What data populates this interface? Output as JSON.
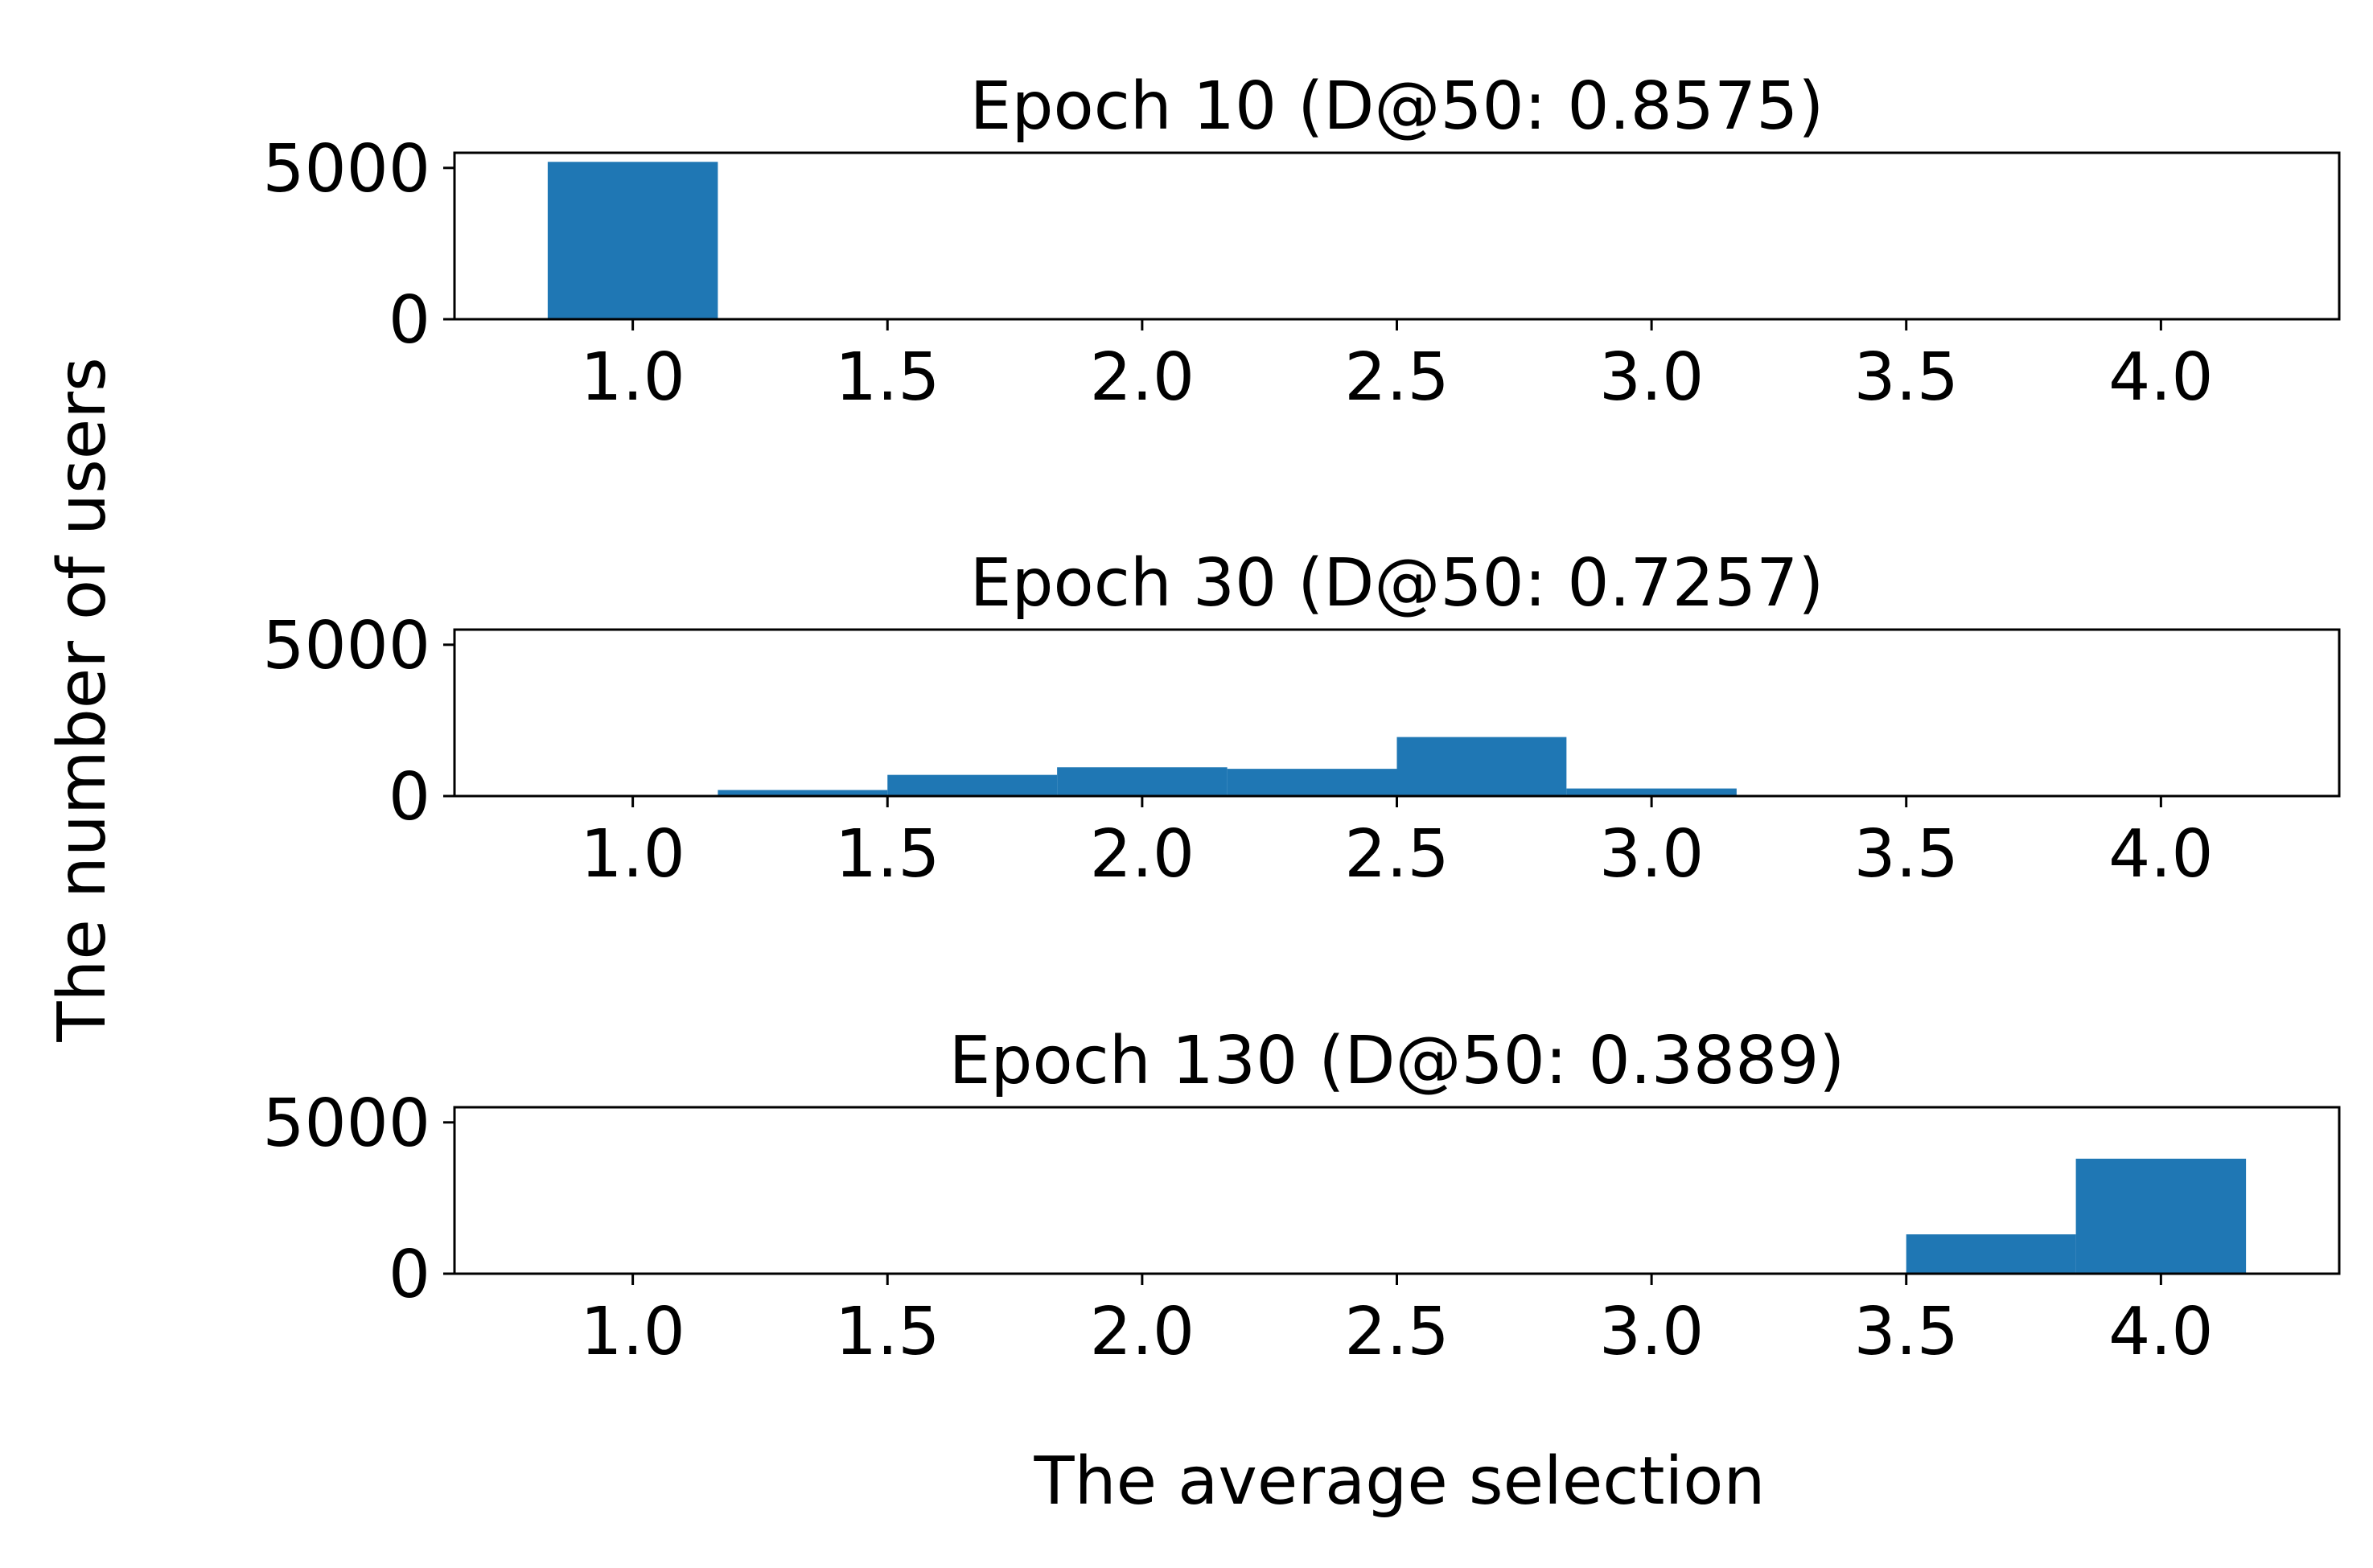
{
  "figure": {
    "ylabel": "The number of users",
    "xlabel": "The average selection"
  },
  "chart_data": [
    {
      "type": "bar",
      "title": "Epoch 10 (D@50: 0.8575)",
      "bins": [
        [
          0.833,
          1.167
        ]
      ],
      "values": [
        5200
      ],
      "xlim": [
        0.65,
        4.35
      ],
      "ylim": [
        0,
        5500
      ],
      "xticks": [
        "1.0",
        "1.5",
        "2.0",
        "2.5",
        "3.0",
        "3.5",
        "4.0"
      ],
      "yticks": [
        "0",
        "5000"
      ],
      "color": "#1f77b4",
      "grid": false
    },
    {
      "type": "bar",
      "title": "Epoch 30 (D@50: 0.7257)",
      "bins": [
        [
          1.167,
          1.5
        ],
        [
          1.5,
          1.833
        ],
        [
          1.833,
          2.167
        ],
        [
          2.167,
          2.5
        ],
        [
          2.5,
          2.833
        ],
        [
          2.833,
          3.167
        ]
      ],
      "values": [
        200,
        700,
        950,
        900,
        1950,
        250
      ],
      "xlim": [
        0.65,
        4.35
      ],
      "ylim": [
        0,
        5500
      ],
      "xticks": [
        "1.0",
        "1.5",
        "2.0",
        "2.5",
        "3.0",
        "3.5",
        "4.0"
      ],
      "yticks": [
        "0",
        "5000"
      ],
      "color": "#1f77b4",
      "grid": false
    },
    {
      "type": "bar",
      "title": "Epoch 130 (D@50: 0.3889)",
      "bins": [
        [
          3.5,
          3.833
        ],
        [
          3.833,
          4.167
        ]
      ],
      "values": [
        1300,
        3800
      ],
      "xlim": [
        0.65,
        4.35
      ],
      "ylim": [
        0,
        5500
      ],
      "xticks": [
        "1.0",
        "1.5",
        "2.0",
        "2.5",
        "3.0",
        "3.5",
        "4.0"
      ],
      "yticks": [
        "0",
        "5000"
      ],
      "color": "#1f77b4",
      "grid": false
    }
  ]
}
